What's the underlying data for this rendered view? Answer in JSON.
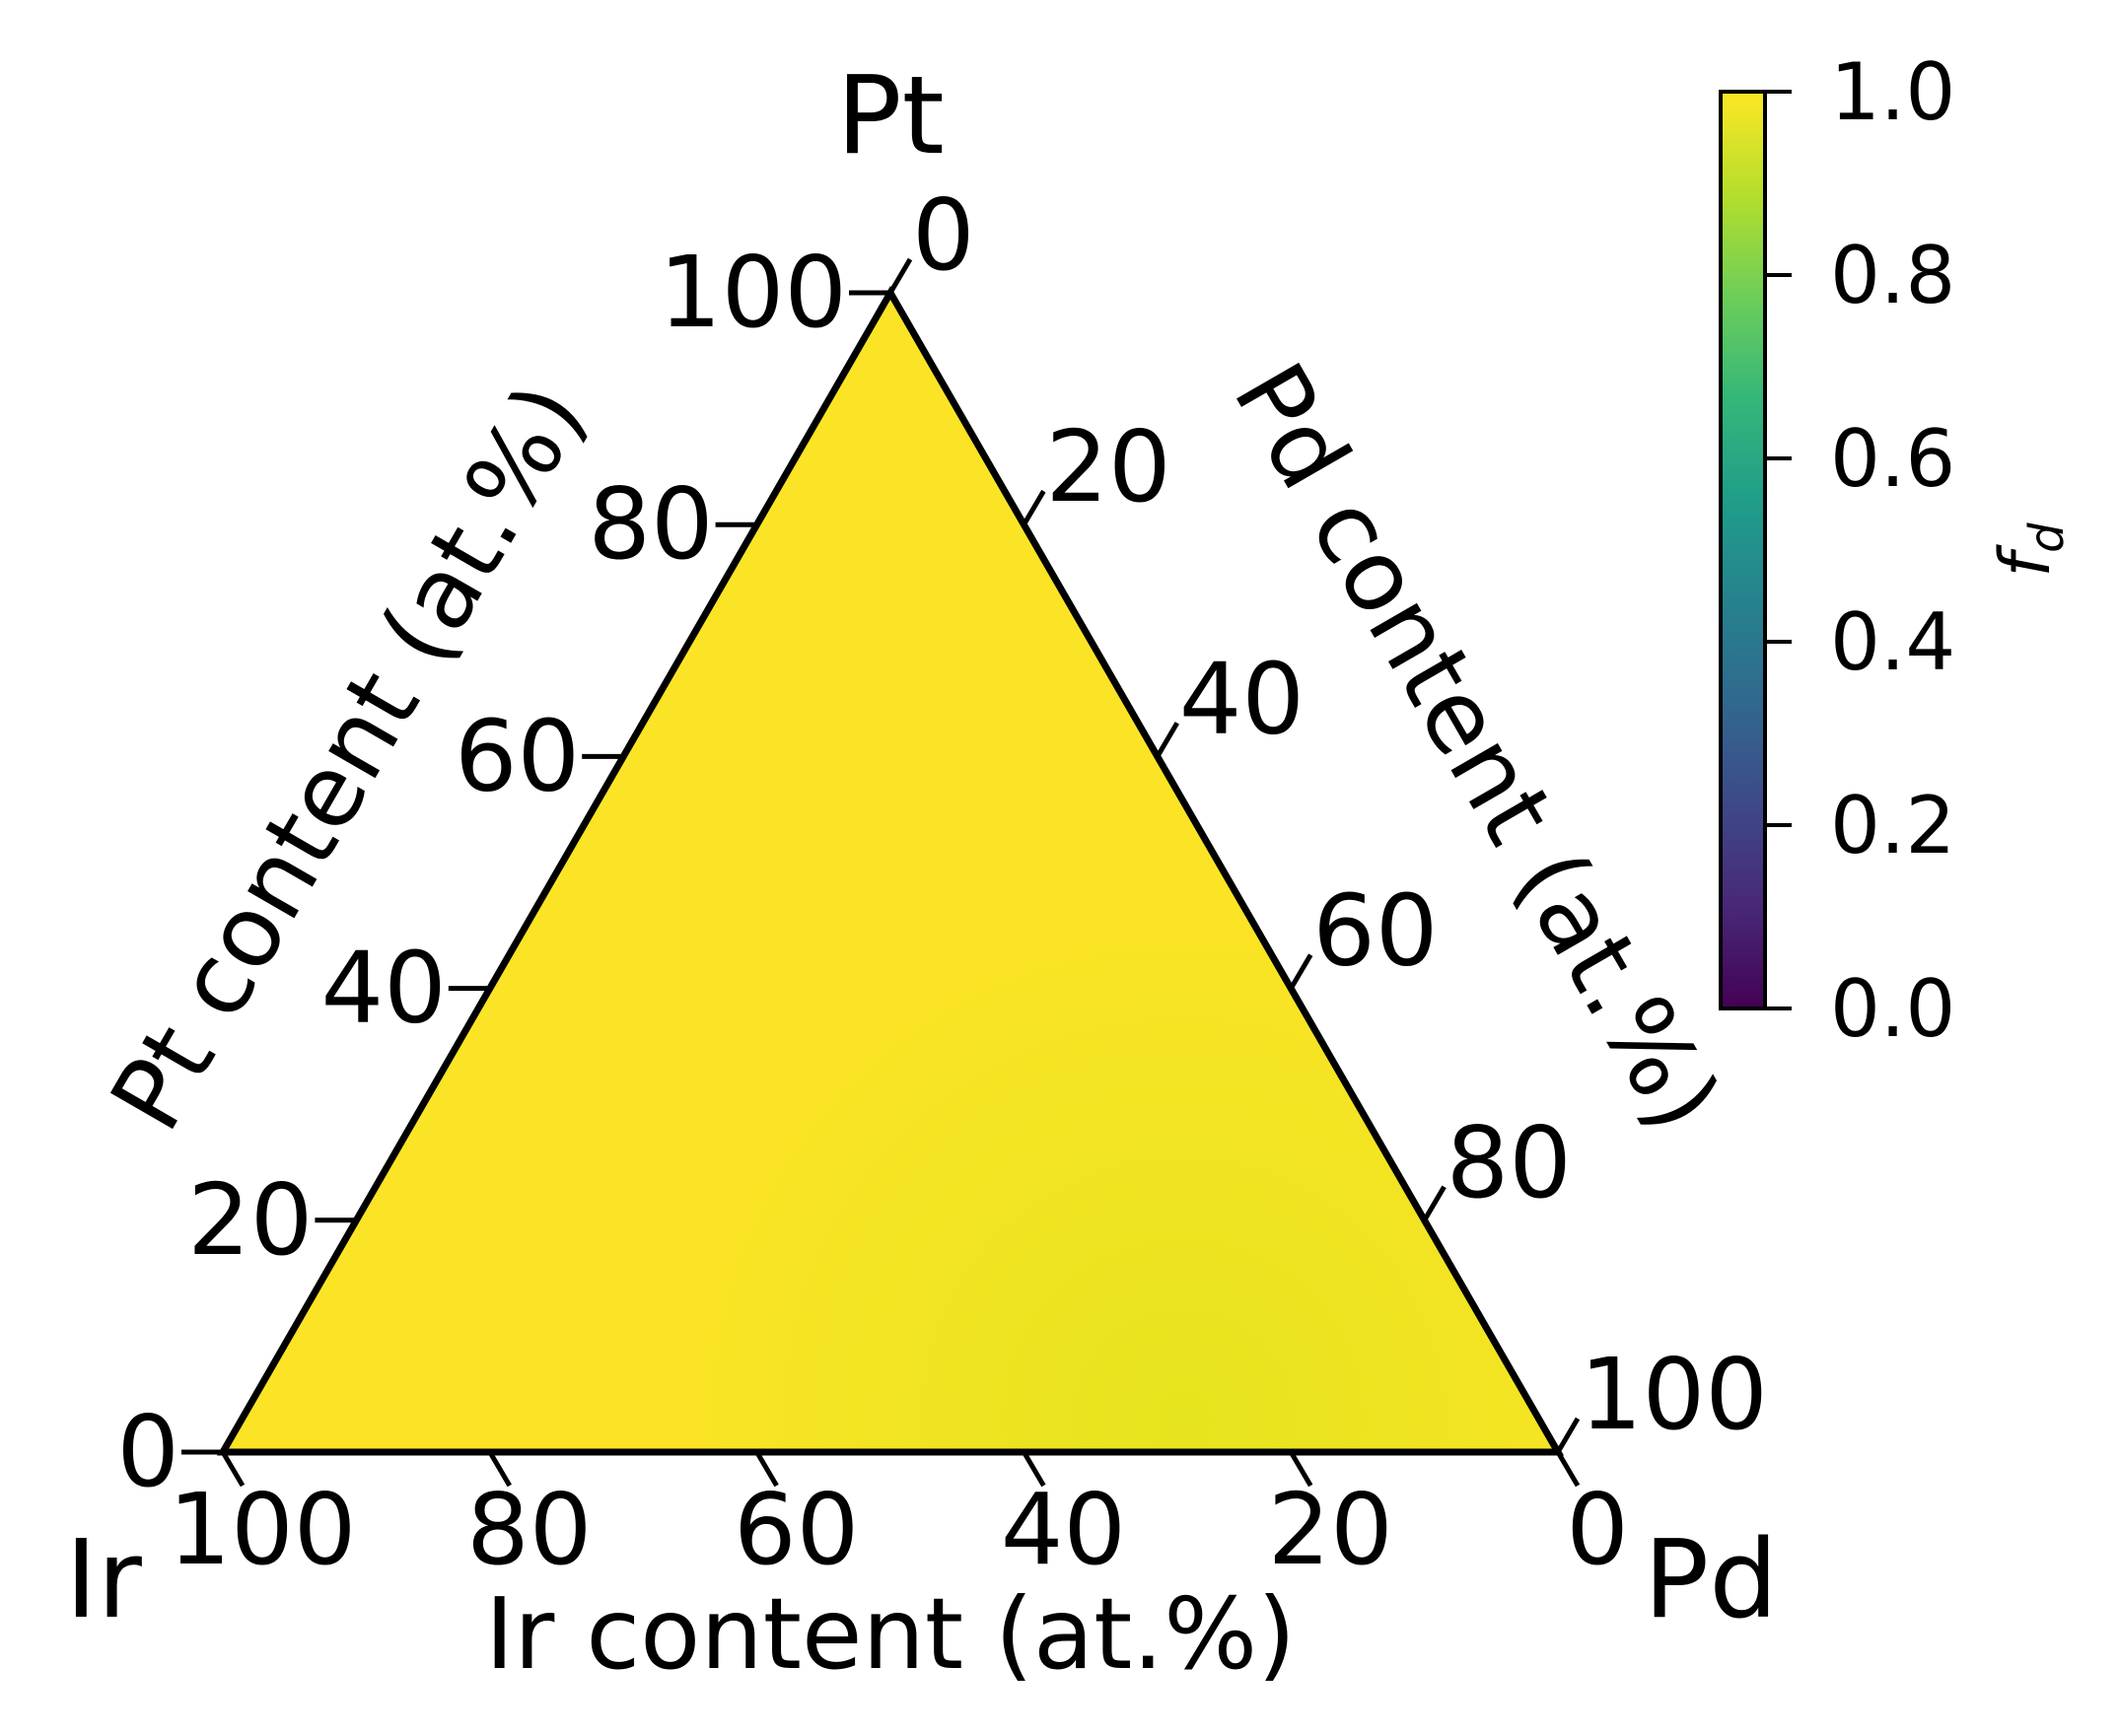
{
  "chart_data": {
    "type": "heatmap",
    "subtype": "ternary",
    "vertices": {
      "top": "Pt",
      "left": "Ir",
      "right": "Pd"
    },
    "axes": {
      "left": {
        "label": "Pt content (at.%)",
        "ticks": [
          "0",
          "20",
          "40",
          "60",
          "80",
          "100"
        ]
      },
      "right": {
        "label": "Pd content (at.%)",
        "ticks": [
          "0",
          "20",
          "40",
          "60",
          "80",
          "100"
        ]
      },
      "bottom": {
        "label": "Ir content (at.%)",
        "ticks": [
          "100",
          "80",
          "60",
          "40",
          "20",
          "0"
        ]
      }
    },
    "grid": false,
    "field": {
      "description_values": "f_d across the composition triangle",
      "points": [
        {
          "Pt": 100,
          "Ir": 0,
          "Pd": 0,
          "value": 0.99
        },
        {
          "Pt": 0,
          "Ir": 100,
          "Pd": 0,
          "value": 0.99
        },
        {
          "Pt": 0,
          "Ir": 0,
          "Pd": 100,
          "value": 0.97
        },
        {
          "Pt": 33,
          "Ir": 33,
          "Pd": 34,
          "value": 0.985
        },
        {
          "Pt": 10,
          "Ir": 20,
          "Pd": 70,
          "value": 0.96
        }
      ]
    },
    "colorbar": {
      "label": "f_d",
      "colormap": "viridis",
      "range": [
        0.0,
        1.0
      ],
      "ticks": [
        "0.0",
        "0.2",
        "0.4",
        "0.6",
        "0.8",
        "1.0"
      ],
      "stops": [
        "#440154",
        "#482878",
        "#3e4989",
        "#31688e",
        "#26828e",
        "#1f9e89",
        "#35b779",
        "#6ece58",
        "#b5de2b",
        "#fde725"
      ]
    }
  }
}
